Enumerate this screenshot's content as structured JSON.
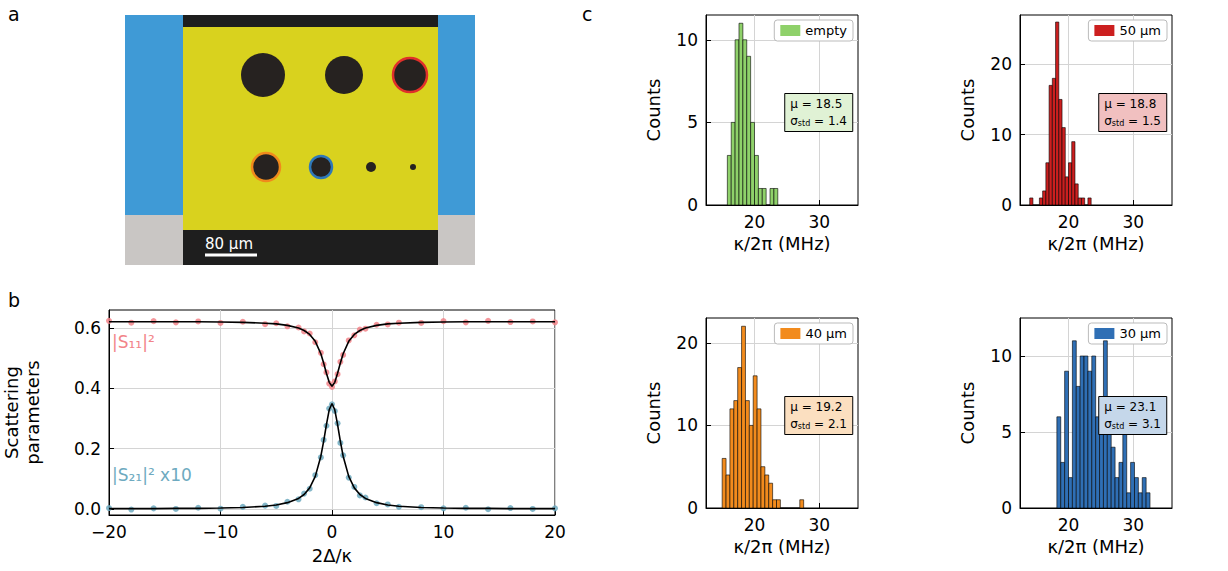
{
  "panel_labels": [
    "a",
    "b",
    "c"
  ],
  "image": {
    "scale_bar": "80 µm"
  },
  "chart_data": [
    {
      "type": "scatter",
      "xlabel": "2Δ/κ",
      "ylabel": "Scattering parameters",
      "xlim": [
        -20,
        20
      ],
      "xticks": [
        {
          "value": -20,
          "label": "−20"
        },
        {
          "value": -10,
          "label": "−10"
        },
        0,
        10,
        20
      ],
      "ylim": [
        -0.02,
        0.66
      ],
      "yticks": [
        {
          "value": 0,
          "label": "0.0"
        },
        {
          "value": 0.2,
          "label": "0.2"
        },
        {
          "value": 0.4,
          "label": "0.4"
        },
        {
          "value": 0.6,
          "label": "0.6"
        }
      ],
      "grid": true,
      "x": [
        -20,
        -18,
        -16,
        -14,
        -12,
        -10,
        -8,
        -6,
        -5,
        -4,
        -3,
        -2.5,
        -2,
        -1.5,
        -1,
        -0.75,
        -0.5,
        -0.25,
        0,
        0.25,
        0.5,
        0.75,
        1,
        1.5,
        2,
        2.5,
        3,
        4,
        5,
        6,
        8,
        10,
        12,
        14,
        16,
        18,
        20
      ],
      "series": [
        {
          "name": "|S₁₁|²",
          "type": "scatter",
          "marker": "circle",
          "color": "#f28489",
          "values": [
            0.624,
            0.618,
            0.623,
            0.619,
            0.622,
            0.617,
            0.621,
            0.613,
            0.616,
            0.606,
            0.602,
            0.589,
            0.582,
            0.553,
            0.518,
            0.48,
            0.453,
            0.416,
            0.405,
            0.423,
            0.447,
            0.488,
            0.511,
            0.559,
            0.576,
            0.595,
            0.598,
            0.611,
            0.612,
            0.618,
            0.617,
            0.623,
            0.619,
            0.624,
            0.62,
            0.622,
            0.619
          ]
        },
        {
          "type": "line",
          "line_style": "solid",
          "color": "#000000",
          "values": [
            0.621,
            0.621,
            0.621,
            0.621,
            0.621,
            0.62,
            0.619,
            0.616,
            0.614,
            0.609,
            0.6,
            0.592,
            0.579,
            0.556,
            0.515,
            0.484,
            0.45,
            0.42,
            0.407,
            0.42,
            0.45,
            0.484,
            0.515,
            0.556,
            0.579,
            0.592,
            0.6,
            0.609,
            0.614,
            0.616,
            0.619,
            0.62,
            0.621,
            0.621,
            0.621,
            0.621,
            0.621
          ]
        },
        {
          "name": "|S₂₁|² x10",
          "type": "scatter",
          "marker": "circle",
          "color": "#6eaac0",
          "values": [
            0.003,
            -0.002,
            0.002,
            0.0,
            0.004,
            0.001,
            0.007,
            0.011,
            0.01,
            0.024,
            0.032,
            0.051,
            0.067,
            0.112,
            0.171,
            0.229,
            0.276,
            0.333,
            0.347,
            0.325,
            0.284,
            0.219,
            0.178,
            0.104,
            0.073,
            0.045,
            0.038,
            0.019,
            0.015,
            0.007,
            0.006,
            0.002,
            0.004,
            -0.001,
            0.003,
            0.0,
            0.002
          ]
        },
        {
          "type": "line",
          "line_style": "solid",
          "color": "#000000",
          "values": [
            0.001,
            0.001,
            0.001,
            0.002,
            0.002,
            0.003,
            0.005,
            0.009,
            0.013,
            0.021,
            0.035,
            0.048,
            0.07,
            0.108,
            0.175,
            0.224,
            0.28,
            0.329,
            0.35,
            0.329,
            0.28,
            0.224,
            0.175,
            0.108,
            0.07,
            0.048,
            0.035,
            0.021,
            0.013,
            0.009,
            0.005,
            0.003,
            0.002,
            0.002,
            0.001,
            0.001,
            0.001
          ]
        }
      ]
    },
    {
      "type": "histogram",
      "xlabel": "κ/2π (MHz)",
      "ylabel": "Counts",
      "xlim": [
        12.5,
        36
      ],
      "xticks": [
        20,
        30
      ],
      "ylim": [
        0,
        11.5
      ],
      "yticks": [
        0,
        5,
        10
      ],
      "grid": true,
      "legend": "top-right",
      "bins": [
        15.8,
        16.4,
        17.0,
        17.6,
        18.2,
        18.8,
        19.4,
        20.0,
        20.6,
        21.2,
        21.8,
        22.4,
        23.0,
        23.6
      ],
      "series": [
        {
          "name": "empty",
          "color": "#8fd16a",
          "values": [
            3,
            5,
            10,
            11,
            10,
            9,
            5,
            3,
            1,
            1,
            0,
            1,
            1
          ]
        }
      ],
      "stats": [
        {
          "label": "μ",
          "value": 18.5
        },
        {
          "label": "σ",
          "subscript": "std",
          "value": 1.4
        }
      ]
    },
    {
      "type": "histogram",
      "xlabel": "κ/2π (MHz)",
      "ylabel": "Counts",
      "xlim": [
        12.5,
        36
      ],
      "xticks": [
        20,
        30
      ],
      "ylim": [
        0,
        27
      ],
      "yticks": [
        0,
        10,
        20
      ],
      "grid": true,
      "legend": "top-right",
      "bins": [
        14.0,
        14.5,
        15.0,
        15.5,
        16.0,
        16.5,
        17.0,
        17.5,
        18.0,
        18.5,
        19.0,
        19.5,
        20.0,
        20.5,
        21.0,
        21.5,
        22.0,
        22.5,
        23.0,
        23.5
      ],
      "series": [
        {
          "name": "50 µm",
          "color": "#cc1f1f",
          "values": [
            1,
            0,
            0,
            1,
            2,
            6,
            17,
            18,
            26,
            15,
            11,
            4,
            6,
            9,
            3,
            1,
            1,
            0,
            1
          ]
        }
      ],
      "stats": [
        {
          "label": "μ",
          "value": 18.8
        },
        {
          "label": "σ",
          "subscript": "std",
          "value": 1.5
        }
      ]
    },
    {
      "type": "histogram",
      "xlabel": "κ/2π (MHz)",
      "ylabel": "Counts",
      "xlim": [
        12.5,
        36
      ],
      "xticks": [
        20,
        30
      ],
      "ylim": [
        0,
        23
      ],
      "yticks": [
        0,
        10,
        20
      ],
      "grid": true,
      "legend": "top-right",
      "bins": [
        15.0,
        15.6,
        16.2,
        16.8,
        17.4,
        18.0,
        18.6,
        19.2,
        19.8,
        20.4,
        21.0,
        21.6,
        22.2,
        22.8,
        23.4,
        24.0,
        24.6,
        25.2,
        25.8,
        26.4,
        27.0,
        27.6
      ],
      "series": [
        {
          "name": "40 µm",
          "color": "#f28b1d",
          "values": [
            6,
            4,
            12,
            13,
            17,
            22,
            13,
            10,
            16,
            12,
            5,
            4,
            3,
            1,
            1,
            0,
            0,
            0,
            0,
            0,
            1
          ]
        }
      ],
      "stats": [
        {
          "label": "μ",
          "value": 19.2
        },
        {
          "label": "σ",
          "subscript": "std",
          "value": 2.1
        }
      ]
    },
    {
      "type": "histogram",
      "xlabel": "κ/2π (MHz)",
      "ylabel": "Counts",
      "xlim": [
        12.5,
        36
      ],
      "xticks": [
        20,
        30
      ],
      "ylim": [
        0,
        12.5
      ],
      "yticks": [
        0,
        5,
        10
      ],
      "grid": true,
      "legend": "top-right",
      "bins": [
        18.2,
        18.8,
        19.4,
        20.0,
        20.6,
        21.2,
        21.8,
        22.4,
        23.0,
        23.6,
        24.2,
        24.8,
        25.4,
        26.0,
        26.6,
        27.2,
        27.8,
        28.4,
        29.0,
        29.6,
        30.2,
        30.8,
        31.4,
        32.0,
        32.6
      ],
      "series": [
        {
          "name": "30 µm",
          "color": "#2f6fb5",
          "values": [
            6,
            3,
            9,
            2,
            11,
            8,
            10,
            10,
            9,
            10,
            6,
            7,
            11,
            5,
            4,
            2,
            3,
            5,
            1,
            3,
            2,
            1,
            2,
            1
          ]
        }
      ],
      "stats": [
        {
          "label": "μ",
          "value": 23.1
        },
        {
          "label": "σ",
          "subscript": "std",
          "value": 3.1
        }
      ]
    }
  ]
}
